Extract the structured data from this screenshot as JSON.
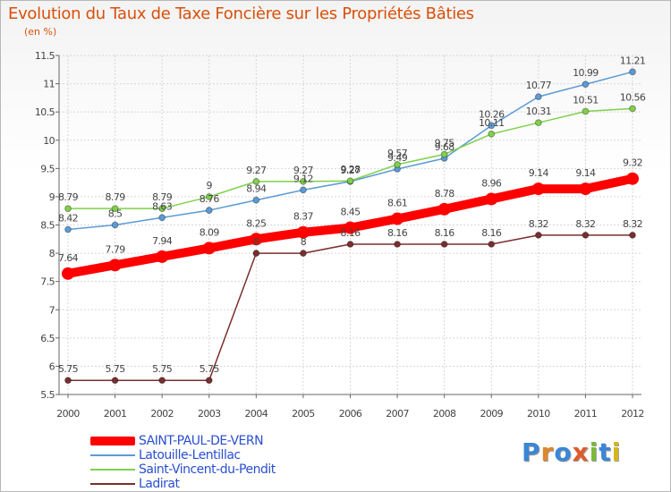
{
  "title": "Evolution du Taux de Taxe Foncière sur les Propriétés Bâties",
  "subtitle": "(en %)",
  "logo": {
    "letters": [
      "P",
      "r",
      "o",
      "x",
      "i",
      "t",
      "i"
    ],
    "colors": [
      "#3a86d6",
      "#e0872a",
      "#3a86d6",
      "#e05a2a",
      "#7ab83a",
      "#3a86d6",
      "#d4b81a"
    ]
  },
  "chart_data": {
    "type": "line",
    "title": "Evolution du Taux de Taxe Foncière sur les Propriétés Bâties",
    "ylabel": "(en %)",
    "xlabel": "",
    "ylim": [
      5.5,
      11.5
    ],
    "yticks": [
      "5.5",
      "6",
      "6.5",
      "7",
      "7.5",
      "8",
      "8.5",
      "9",
      "9.5",
      "10",
      "10.5",
      "11",
      "11.5"
    ],
    "categories": [
      "2000",
      "2001",
      "2002",
      "2003",
      "2004",
      "2005",
      "2006",
      "2007",
      "2008",
      "2009",
      "2010",
      "2011",
      "2012"
    ],
    "series": [
      {
        "name": "SAINT-PAUL-DE-VERN",
        "color": "#ff0000",
        "highlight": true,
        "values": [
          7.64,
          7.79,
          7.94,
          8.09,
          8.25,
          8.37,
          8.45,
          8.61,
          8.78,
          8.96,
          9.14,
          9.14,
          9.32
        ],
        "labels": [
          "7.64",
          "7.79",
          "7.94",
          "8.09",
          "8.25",
          "8.37",
          "8.45",
          "8.61",
          "8.78",
          "8.96",
          "9.14",
          "9.14",
          "9.32"
        ]
      },
      {
        "name": "Latouille-Lentillac",
        "color": "#5b9bd5",
        "highlight": false,
        "values": [
          8.42,
          8.5,
          8.63,
          8.76,
          8.94,
          9.12,
          9.27,
          9.49,
          9.68,
          10.26,
          10.77,
          10.99,
          11.21
        ],
        "labels": [
          "8.42",
          "8.5",
          "8.63",
          "8.76",
          "8.94",
          "9.12",
          "9.27",
          "9.49",
          "9.68",
          "10.26",
          "10.77",
          "10.99",
          "11.21"
        ]
      },
      {
        "name": "Saint-Vincent-du-Pendit",
        "color": "#7fd14a",
        "highlight": false,
        "values": [
          8.79,
          8.79,
          8.79,
          9,
          9.27,
          9.27,
          9.28,
          9.57,
          9.75,
          10.11,
          10.31,
          10.51,
          10.56
        ],
        "labels": [
          "8.79",
          "8.79",
          "8.79",
          "9",
          "9.27",
          "9.27",
          "9.28",
          "9.57",
          "9.75",
          "10.11",
          "10.31",
          "10.51",
          "10.56"
        ]
      },
      {
        "name": "Ladirat",
        "color": "#7a2e2e",
        "highlight": false,
        "values": [
          5.75,
          5.75,
          5.75,
          5.75,
          8,
          8,
          8.16,
          8.16,
          8.16,
          8.16,
          8.32,
          8.32,
          8.32
        ],
        "labels": [
          "5.75",
          "5.75",
          "5.75",
          "5.75",
          "8",
          "8",
          "8.16",
          "8.16",
          "8.16",
          "8.16",
          "8.32",
          "8.32",
          "8.32"
        ]
      }
    ]
  }
}
